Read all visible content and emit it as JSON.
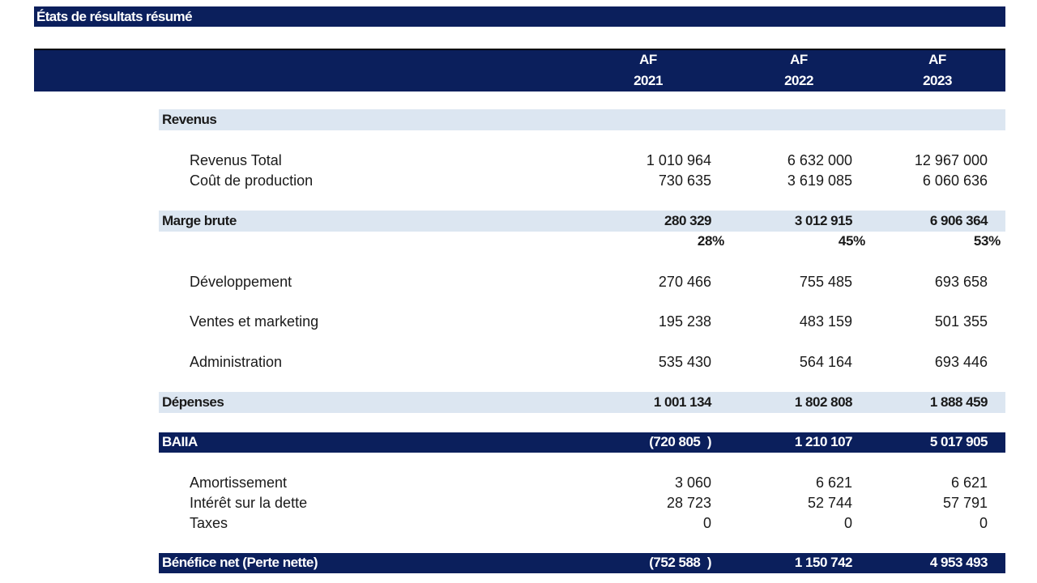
{
  "title": "États de résultats résumé",
  "headers": [
    {
      "prefix": "AF",
      "year": "2021"
    },
    {
      "prefix": "AF",
      "year": "2022"
    },
    {
      "prefix": "AF",
      "year": "2023"
    }
  ],
  "sections": {
    "revenus": "Revenus",
    "revenus_total": {
      "label": "Revenus Total",
      "values": [
        "1 010 964",
        "6 632 000",
        "12 967 000"
      ]
    },
    "cout_production": {
      "label": "Coût de production",
      "values": [
        "730 635",
        "3 619 085",
        "6 060 636"
      ]
    },
    "marge_brute": {
      "label": "Marge brute",
      "values": [
        "280 329",
        "3 012 915",
        "6 906 364"
      ]
    },
    "marge_pct": [
      "28%",
      "45%",
      "53%"
    ],
    "developpement": {
      "label": "Développement",
      "values": [
        "270 466",
        "755 485",
        "693 658"
      ]
    },
    "ventes_marketing": {
      "label": "Ventes et marketing",
      "values": [
        "195 238",
        "483 159",
        "501 355"
      ]
    },
    "administration": {
      "label": "Administration",
      "values": [
        "535 430",
        "564 164",
        "693 446"
      ]
    },
    "depenses": {
      "label": "Dépenses",
      "values": [
        "1 001 134",
        "1 802 808",
        "1 888 459"
      ]
    },
    "baiia": {
      "label": "BAIIA",
      "values": [
        "(720 805  )",
        "1 210 107",
        "5 017 905"
      ]
    },
    "amortissement": {
      "label": "Amortissement",
      "values": [
        "3 060",
        "6 621",
        "6 621"
      ]
    },
    "interet": {
      "label": "Intérêt sur la dette",
      "values": [
        "28 723",
        "52 744",
        "57 791"
      ]
    },
    "taxes": {
      "label": "Taxes",
      "values": [
        "0",
        "0",
        "0"
      ]
    },
    "benefice": {
      "label": "Bénéfice net (Perte nette)",
      "values": [
        "(752 588  )",
        "1 150 742",
        "4 953 493"
      ]
    }
  }
}
